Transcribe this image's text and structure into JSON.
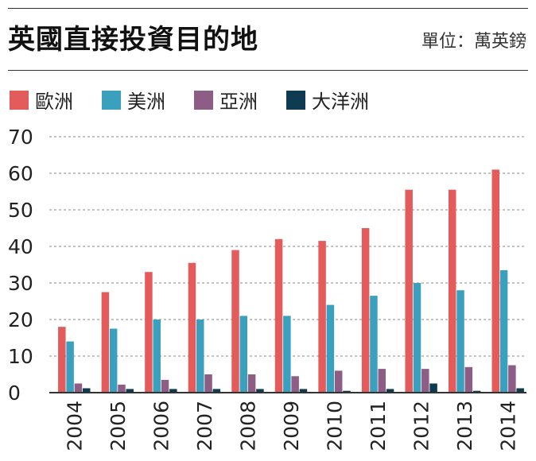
{
  "colors": {
    "europe": "#e45b5b",
    "americas": "#3aa0bd",
    "asia": "#8e5d86",
    "oceania": "#0e3b52",
    "grid": "#888888",
    "axis": "#333333"
  },
  "chart_data": {
    "type": "bar",
    "title": "英國直接投資目的地",
    "unit_label": "單位：萬英鎊",
    "xlabel": "",
    "ylabel": "",
    "categories": [
      "2004",
      "2005",
      "2006",
      "2007",
      "2008",
      "2009",
      "2010",
      "2011",
      "2012",
      "2013",
      "2014"
    ],
    "ylim": [
      0,
      70
    ],
    "yticks": [
      0,
      10,
      20,
      30,
      40,
      50,
      60,
      70
    ],
    "grid": true,
    "legend_position": "top-left",
    "series": [
      {
        "name": "歐洲",
        "color_key": "europe",
        "values": [
          18,
          27.5,
          33,
          35.5,
          39,
          42,
          41.5,
          45,
          55.5,
          55.5,
          61
        ]
      },
      {
        "name": "美洲",
        "color_key": "americas",
        "values": [
          14,
          17.5,
          20,
          20,
          21,
          21,
          24,
          26.5,
          30,
          28,
          33.5
        ]
      },
      {
        "name": "亞洲",
        "color_key": "asia",
        "values": [
          2.5,
          2.2,
          3.5,
          5,
          5,
          4.5,
          6,
          6.5,
          6.5,
          7,
          7.5
        ]
      },
      {
        "name": "大洋洲",
        "color_key": "oceania",
        "values": [
          1.2,
          1,
          1,
          1,
          1,
          1,
          0.5,
          1,
          2.5,
          0.5,
          1.2
        ]
      }
    ]
  }
}
